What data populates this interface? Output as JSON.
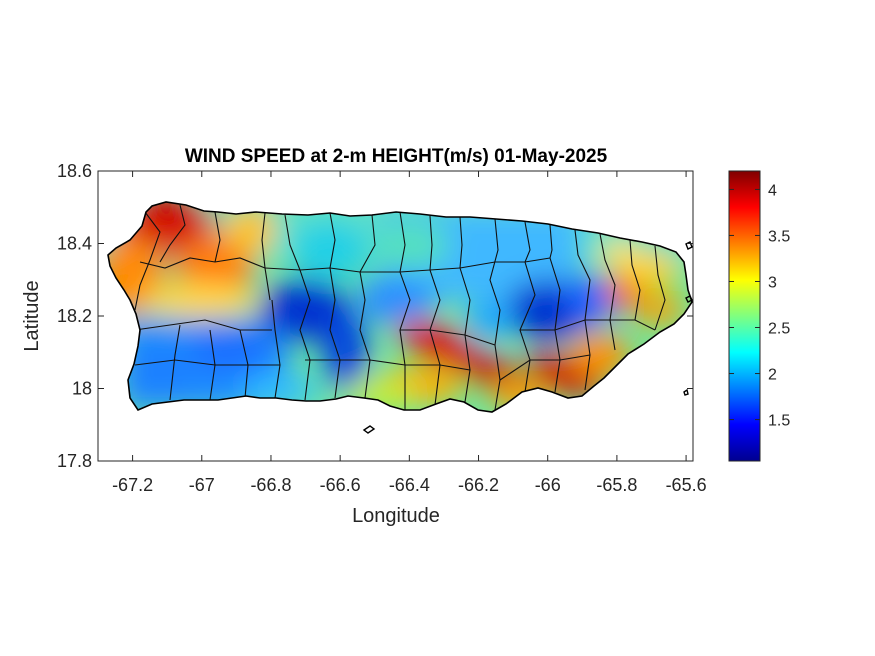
{
  "figure": {
    "title": "WIND SPEED at 2-m HEIGHT(m/s) 01-May-2025"
  },
  "chart_data": {
    "type": "heatmap",
    "title": "WIND SPEED at 2-m HEIGHT(m/s) 01-May-2025",
    "xlabel": "Longitude",
    "ylabel": "Latitude",
    "xlim": [
      -67.3,
      -65.58
    ],
    "ylim": [
      17.8,
      18.6
    ],
    "xticks": [
      -67.2,
      -67,
      -66.8,
      -66.6,
      -66.4,
      -66.2,
      -66,
      -65.8,
      -65.6
    ],
    "xtick_labels": [
      "-67.2",
      "-67",
      "-66.8",
      "-66.6",
      "-66.4",
      "-66.2",
      "-66",
      "-65.8",
      "-65.6"
    ],
    "yticks": [
      17.8,
      18,
      18.2,
      18.4,
      18.6
    ],
    "ytick_labels": [
      "17.8",
      "18",
      "18.2",
      "18.4",
      "18.6"
    ],
    "colormap": "jet",
    "colorbar": {
      "range": [
        1.05,
        4.2
      ],
      "ticks": [
        1.5,
        2,
        2.5,
        3,
        3.5,
        4
      ],
      "tick_labels": [
        "1.5",
        "2",
        "2.5",
        "3",
        "3.5",
        "4"
      ],
      "placement": "right"
    },
    "grid": false,
    "features": [
      {
        "lon": -67.12,
        "lat": 18.46,
        "value": 4.0
      },
      {
        "lon": -67.22,
        "lat": 18.33,
        "value": 3.6
      },
      {
        "lon": -67.0,
        "lat": 18.36,
        "value": 3.5
      },
      {
        "lon": -66.88,
        "lat": 18.42,
        "value": 2.8
      },
      {
        "lon": -66.7,
        "lat": 18.2,
        "value": 1.2
      },
      {
        "lon": -66.62,
        "lat": 18.12,
        "value": 1.4
      },
      {
        "lon": -67.05,
        "lat": 18.08,
        "value": 1.8
      },
      {
        "lon": -66.32,
        "lat": 18.12,
        "value": 4.1
      },
      {
        "lon": -66.2,
        "lat": 18.08,
        "value": 3.8
      },
      {
        "lon": -66.0,
        "lat": 18.22,
        "value": 1.3
      },
      {
        "lon": -65.95,
        "lat": 18.02,
        "value": 4.0
      },
      {
        "lon": -65.78,
        "lat": 18.25,
        "value": 3.7
      },
      {
        "lon": -66.4,
        "lat": 18.35,
        "value": 2.4
      },
      {
        "lon": -66.5,
        "lat": 17.98,
        "value": 2.8
      }
    ]
  }
}
